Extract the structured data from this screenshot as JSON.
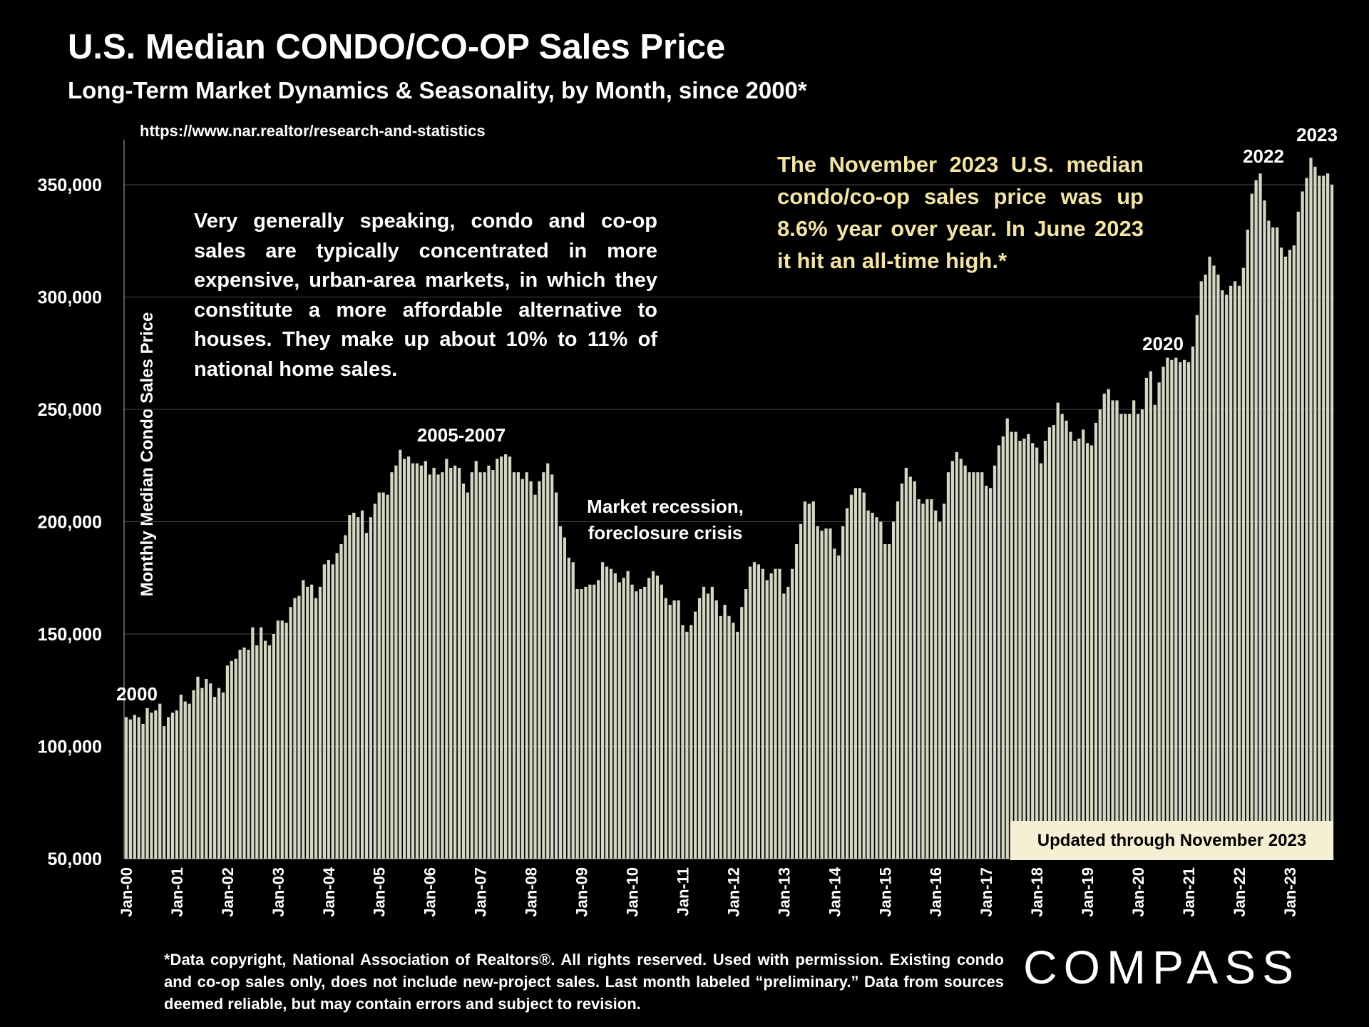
{
  "chart_data": {
    "type": "bar",
    "title": "U.S. Median CONDO/CO-OP Sales Price",
    "subtitle": "Long-Term Market Dynamics & Seasonality, by Month, since 2000*",
    "source_url": "https://www.nar.realtor/research-and-statistics",
    "y_label": "Monthly Median Condo Sales Price",
    "note": "Very generally speaking, condo and co-op sales are typically concentrated in more expensive, urban-area markets, in which they constitute a more affordable alternative to houses. They make up about 10% to 11% of national home sales.",
    "highlight": "The November 2023 U.S. median condo/co-op sales price was up 8.6% year over year. In June 2023 it hit an all-time high.*",
    "annotations": [
      "2000",
      "2005-2007",
      "Market recession, foreclosure crisis",
      "2020",
      "2022",
      "2023"
    ],
    "updated_label": "Updated through November 2023",
    "footnote": "*Data copyright, National Association of Realtors®. All rights reserved. Used with permission. Existing condo and co-op sales only, does  not include new-project sales. Last month labeled “preliminary.” Data from sources deemed reliable, but may contain errors and subject to revision.",
    "logo": "COMPASS",
    "color": "#d6d6c4",
    "grid": true,
    "ylim": [
      50000,
      370000
    ],
    "yticks": [
      {
        "value": 50000,
        "label": "50,000"
      },
      {
        "value": 100000,
        "label": "100,000"
      },
      {
        "value": 150000,
        "label": "150,000"
      },
      {
        "value": 200000,
        "label": "200,000"
      },
      {
        "value": 250000,
        "label": "250,000"
      },
      {
        "value": 300000,
        "label": "300,000"
      },
      {
        "value": 350000,
        "label": "350,000"
      }
    ],
    "categories": [
      "Jan-00",
      null,
      null,
      null,
      null,
      null,
      null,
      null,
      null,
      null,
      null,
      null,
      "Jan-01",
      null,
      null,
      null,
      null,
      null,
      null,
      null,
      null,
      null,
      null,
      null,
      "Jan-02",
      null,
      null,
      null,
      null,
      null,
      null,
      null,
      null,
      null,
      null,
      null,
      "Jan-03",
      null,
      null,
      null,
      null,
      null,
      null,
      null,
      null,
      null,
      null,
      null,
      "Jan-04",
      null,
      null,
      null,
      null,
      null,
      null,
      null,
      null,
      null,
      null,
      null,
      "Jan-05",
      null,
      null,
      null,
      null,
      null,
      null,
      null,
      null,
      null,
      null,
      null,
      "Jan-06",
      null,
      null,
      null,
      null,
      null,
      null,
      null,
      null,
      null,
      null,
      null,
      "Jan-07",
      null,
      null,
      null,
      null,
      null,
      null,
      null,
      null,
      null,
      null,
      null,
      "Jan-08",
      null,
      null,
      null,
      null,
      null,
      null,
      null,
      null,
      null,
      null,
      null,
      "Jan-09",
      null,
      null,
      null,
      null,
      null,
      null,
      null,
      null,
      null,
      null,
      null,
      "Jan-10",
      null,
      null,
      null,
      null,
      null,
      null,
      null,
      null,
      null,
      null,
      null,
      "Jan-11",
      null,
      null,
      null,
      null,
      null,
      null,
      null,
      null,
      null,
      null,
      null,
      "Jan-12",
      null,
      null,
      null,
      null,
      null,
      null,
      null,
      null,
      null,
      null,
      null,
      "Jan-13",
      null,
      null,
      null,
      null,
      null,
      null,
      null,
      null,
      null,
      null,
      null,
      "Jan-14",
      null,
      null,
      null,
      null,
      null,
      null,
      null,
      null,
      null,
      null,
      null,
      "Jan-15",
      null,
      null,
      null,
      null,
      null,
      null,
      null,
      null,
      null,
      null,
      null,
      "Jan-16",
      null,
      null,
      null,
      null,
      null,
      null,
      null,
      null,
      null,
      null,
      null,
      "Jan-17",
      null,
      null,
      null,
      null,
      null,
      null,
      null,
      null,
      null,
      null,
      null,
      "Jan-18",
      null,
      null,
      null,
      null,
      null,
      null,
      null,
      null,
      null,
      null,
      null,
      "Jan-19",
      null,
      null,
      null,
      null,
      null,
      null,
      null,
      null,
      null,
      null,
      null,
      "Jan-20",
      null,
      null,
      null,
      null,
      null,
      null,
      null,
      null,
      null,
      null,
      null,
      "Jan-21",
      null,
      null,
      null,
      null,
      null,
      null,
      null,
      null,
      null,
      null,
      null,
      "Jan-22",
      null,
      null,
      null,
      null,
      null,
      null,
      null,
      null,
      null,
      null,
      null,
      "Jan-23",
      null,
      null,
      null,
      null,
      null,
      null,
      null,
      null,
      null,
      null
    ],
    "values": [
      113000,
      112000,
      114000,
      113000,
      110000,
      117000,
      115000,
      116000,
      119000,
      109000,
      113000,
      115000,
      116000,
      123000,
      120000,
      119000,
      125000,
      131000,
      126000,
      130000,
      128000,
      122000,
      126000,
      124000,
      136000,
      138000,
      139000,
      143000,
      144000,
      143000,
      153000,
      145000,
      153000,
      147000,
      145000,
      150000,
      156000,
      156000,
      155000,
      162000,
      166000,
      167000,
      174000,
      171000,
      172000,
      166000,
      171000,
      181000,
      183000,
      181000,
      186000,
      190000,
      194000,
      203000,
      204000,
      202000,
      205000,
      195000,
      202000,
      208000,
      213000,
      213000,
      212000,
      222000,
      225000,
      232000,
      228000,
      229000,
      226000,
      226000,
      225000,
      227000,
      221000,
      224000,
      221000,
      222000,
      228000,
      224000,
      225000,
      224000,
      217000,
      213000,
      222000,
      227000,
      222000,
      222000,
      225000,
      223000,
      228000,
      229000,
      230000,
      229000,
      222000,
      222000,
      219000,
      222000,
      218000,
      212000,
      218000,
      222000,
      226000,
      221000,
      213000,
      198000,
      193000,
      184000,
      182000,
      170000,
      170000,
      171000,
      172000,
      172000,
      174000,
      182000,
      180000,
      179000,
      177000,
      173000,
      175000,
      178000,
      172000,
      169000,
      170000,
      171000,
      175000,
      178000,
      176000,
      172000,
      166000,
      163000,
      165000,
      165000,
      154000,
      151000,
      154000,
      160000,
      166000,
      171000,
      168000,
      171000,
      165000,
      158000,
      163000,
      158000,
      155000,
      151000,
      162000,
      170000,
      180000,
      182000,
      181000,
      179000,
      174000,
      177000,
      179000,
      179000,
      168000,
      171000,
      179000,
      190000,
      199000,
      209000,
      208000,
      209000,
      198000,
      196000,
      197000,
      197000,
      188000,
      185000,
      198000,
      206000,
      212000,
      215000,
      215000,
      213000,
      205000,
      204000,
      202000,
      200000,
      190000,
      190000,
      200000,
      209000,
      217000,
      224000,
      220000,
      218000,
      210000,
      208000,
      210000,
      210000,
      205000,
      200000,
      208000,
      222000,
      227000,
      231000,
      228000,
      225000,
      222000,
      222000,
      222000,
      222000,
      216000,
      215000,
      225000,
      234000,
      238000,
      246000,
      240000,
      240000,
      236000,
      237000,
      239000,
      235000,
      233000,
      226000,
      236000,
      242000,
      243000,
      253000,
      248000,
      245000,
      240000,
      236000,
      237000,
      241000,
      235000,
      234000,
      244000,
      250000,
      257000,
      259000,
      254000,
      254000,
      248000,
      248000,
      248000,
      254000,
      248000,
      250000,
      264000,
      267000,
      252000,
      262000,
      269000,
      273000,
      272000,
      273000,
      271000,
      272000,
      271000,
      278000,
      292000,
      307000,
      310000,
      318000,
      314000,
      310000,
      303000,
      301000,
      305000,
      307000,
      305000,
      313000,
      330000,
      346000,
      352000,
      355000,
      343000,
      334000,
      331000,
      331000,
      322000,
      318000,
      321000,
      323000,
      338000,
      347000,
      353000,
      362000,
      358000,
      354000,
      354000,
      355000,
      350000
    ]
  }
}
